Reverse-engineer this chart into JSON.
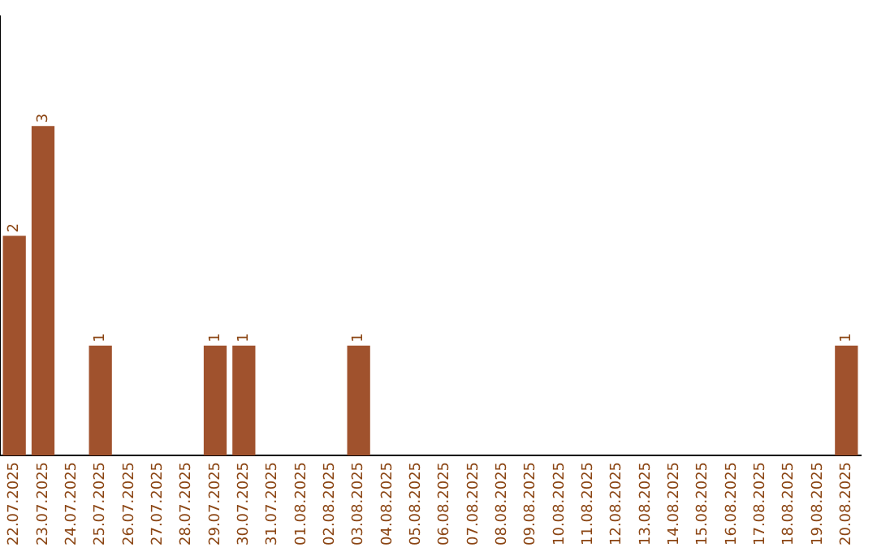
{
  "chart_data": {
    "type": "bar",
    "categories": [
      "22.07.2025",
      "23.07.2025",
      "24.07.2025",
      "25.07.2025",
      "26.07.2025",
      "27.07.2025",
      "28.07.2025",
      "29.07.2025",
      "30.07.2025",
      "31.07.2025",
      "01.08.2025",
      "02.08.2025",
      "03.08.2025",
      "04.08.2025",
      "05.08.2025",
      "06.08.2025",
      "07.08.2025",
      "08.08.2025",
      "09.08.2025",
      "10.08.2025",
      "11.08.2025",
      "12.08.2025",
      "13.08.2025",
      "14.08.2025",
      "15.08.2025",
      "16.08.2025",
      "17.08.2025",
      "18.08.2025",
      "19.08.2025",
      "20.08.2025"
    ],
    "values": [
      2,
      3,
      0,
      1,
      0,
      0,
      0,
      1,
      1,
      0,
      0,
      0,
      1,
      0,
      0,
      0,
      0,
      0,
      0,
      0,
      0,
      0,
      0,
      0,
      0,
      0,
      0,
      0,
      0,
      1
    ],
    "value_labels": [
      "2",
      "3",
      null,
      "1",
      null,
      null,
      null,
      "1",
      "1",
      null,
      null,
      null,
      "1",
      null,
      null,
      null,
      null,
      null,
      null,
      null,
      null,
      null,
      null,
      null,
      null,
      null,
      null,
      null,
      null,
      "1"
    ],
    "color": "#a0522d",
    "grid": false,
    "legend": false,
    "tick_labels": "x"
  }
}
